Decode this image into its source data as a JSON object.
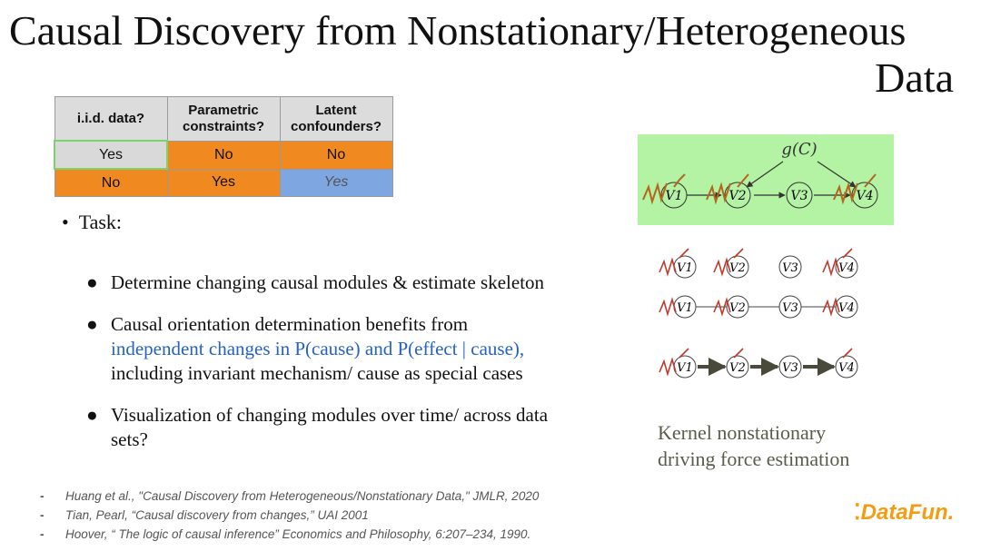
{
  "title": {
    "line1": "Causal Discovery from Nonstationary/Heterogeneous",
    "line2": "Data"
  },
  "table": {
    "headers": [
      "i.i.d. data?",
      "Parametric constraints?",
      "Latent confounders?"
    ],
    "rows": [
      [
        "Yes",
        "No",
        "No"
      ],
      [
        "No",
        "Yes",
        "Yes"
      ]
    ]
  },
  "task_label": "Task:",
  "bullets": {
    "b1": "Determine changing causal modules & estimate skeleton",
    "b2_start": "Causal orientation determination benefits from",
    "b2_blue": "independent changes in P(cause) and P(effect | cause),",
    "b2_end": "including invariant mechanism/ cause as special cases",
    "b3": "Visualization of changing modules over time/ across data sets?"
  },
  "graph": {
    "gc_label": "g(C)",
    "nodes": [
      "V1",
      "V2",
      "V3",
      "V4"
    ]
  },
  "caption": {
    "line1": "Kernel nonstationary",
    "line2": "driving force estimation"
  },
  "references": [
    "Huang et al., \"Causal Discovery from Heterogeneous/Nonstationary Data,\" JMLR, 2020",
    "Tian, Pearl, “Causal discovery from changes,” UAI 2001",
    "Hoover, “ The logic of causal inference” Economics and Philosophy, 6:207–234, 1990."
  ],
  "logo": "DataFun.",
  "colors": {
    "orange": "#f0891f",
    "blue_cell": "#7ea6e0",
    "green_panel": "#b3f3a3",
    "link_blue": "#2462c8"
  }
}
